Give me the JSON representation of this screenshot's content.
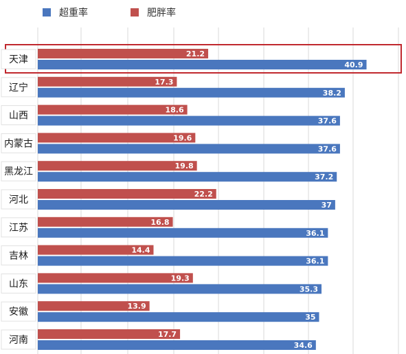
{
  "colors": {
    "overweight": "#4a77be",
    "obese": "#c0504d",
    "highlight": "#c0272d",
    "grid": "#d9d9d9"
  },
  "chart_data": {
    "type": "bar",
    "orientation": "horizontal",
    "title": "",
    "xlabel": "",
    "ylabel": "",
    "xlim": [
      0,
      45
    ],
    "grid": true,
    "legend": "top-left",
    "highlight_category": "天津",
    "categories": [
      "天津",
      "辽宁",
      "山西",
      "内蒙古",
      "黑龙江",
      "河北",
      "江苏",
      "吉林",
      "山东",
      "安徽",
      "河南"
    ],
    "series": [
      {
        "name": "超重率",
        "values": [
          40.9,
          38.2,
          37.6,
          37.6,
          37.2,
          37,
          36.1,
          36.1,
          35.3,
          35,
          34.6
        ]
      },
      {
        "name": "肥胖率",
        "values": [
          21.2,
          17.3,
          18.6,
          19.6,
          19.8,
          22.2,
          16.8,
          14.4,
          19.3,
          13.9,
          17.7
        ]
      }
    ]
  }
}
